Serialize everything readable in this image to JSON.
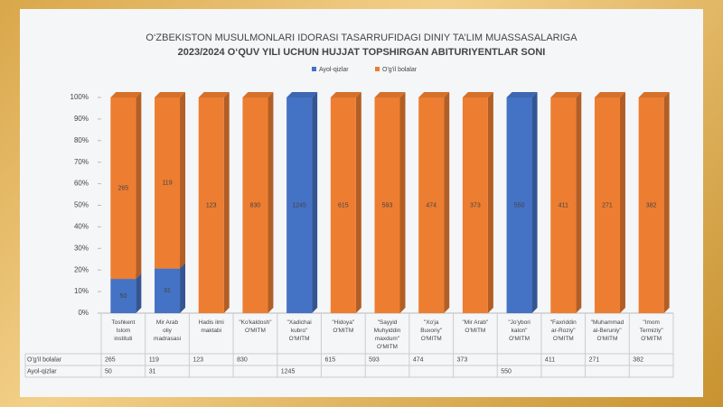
{
  "chart_data": {
    "type": "stacked-percent-bar",
    "title": "O‘ZBEKISTON MUSULMONLARI IDORASI TASARRUFIDAGI DINIY TA’LIM MUASSASALARIGA",
    "subtitle": "2023/2024 O‘QUV YILI UCHUN HUJJAT TOPSHIRGAN ABITURIYENTLAR SONI",
    "categories": [
      "Toshkent Islom instituti",
      "Mir Arab oliy madrasasi",
      "Hadis ilmi maktabi",
      "\"Ko'kaldosh\" O'MITM",
      "\"Xadichai kubro\" O'MITM",
      "\"Hidoya\" O'MITM",
      "\"Sayyid Muhyiddin maxdum\" O'MITM",
      "\"Xo'ja Buxoriy\" O'MITM",
      "\"Mir Arab\" O'MITM",
      "\"Jo'ybori kalon\" O'MITM",
      "\"Faxriddin ar-Roziy\" O'MITM",
      "\"Muhammad al-Beruniy\" O'MITM",
      "\"Imom Termiziy\" O'MITM"
    ],
    "series": [
      {
        "name": "Ayol-qizlar",
        "color": "#4472c4",
        "values": [
          50,
          31,
          null,
          null,
          1245,
          null,
          null,
          null,
          null,
          550,
          null,
          null,
          null
        ]
      },
      {
        "name": "O'g'il bolalar",
        "color": "#ed7d31",
        "values": [
          265,
          119,
          123,
          830,
          null,
          615,
          593,
          474,
          373,
          null,
          411,
          271,
          382
        ]
      }
    ],
    "ylim": [
      0,
      100
    ],
    "yticks": [
      {
        "value": 0,
        "label": "0%"
      },
      {
        "value": 10,
        "label": "10%"
      },
      {
        "value": 20,
        "label": "20%"
      },
      {
        "value": 30,
        "label": "30%"
      },
      {
        "value": 40,
        "label": "40%"
      },
      {
        "value": 50,
        "label": "50%"
      },
      {
        "value": 60,
        "label": "60%"
      },
      {
        "value": 70,
        "label": "70%"
      },
      {
        "value": 80,
        "label": "80%"
      },
      {
        "value": 90,
        "label": "90%"
      },
      {
        "value": 100,
        "label": "100%"
      }
    ],
    "legend": "top",
    "grid": false
  }
}
